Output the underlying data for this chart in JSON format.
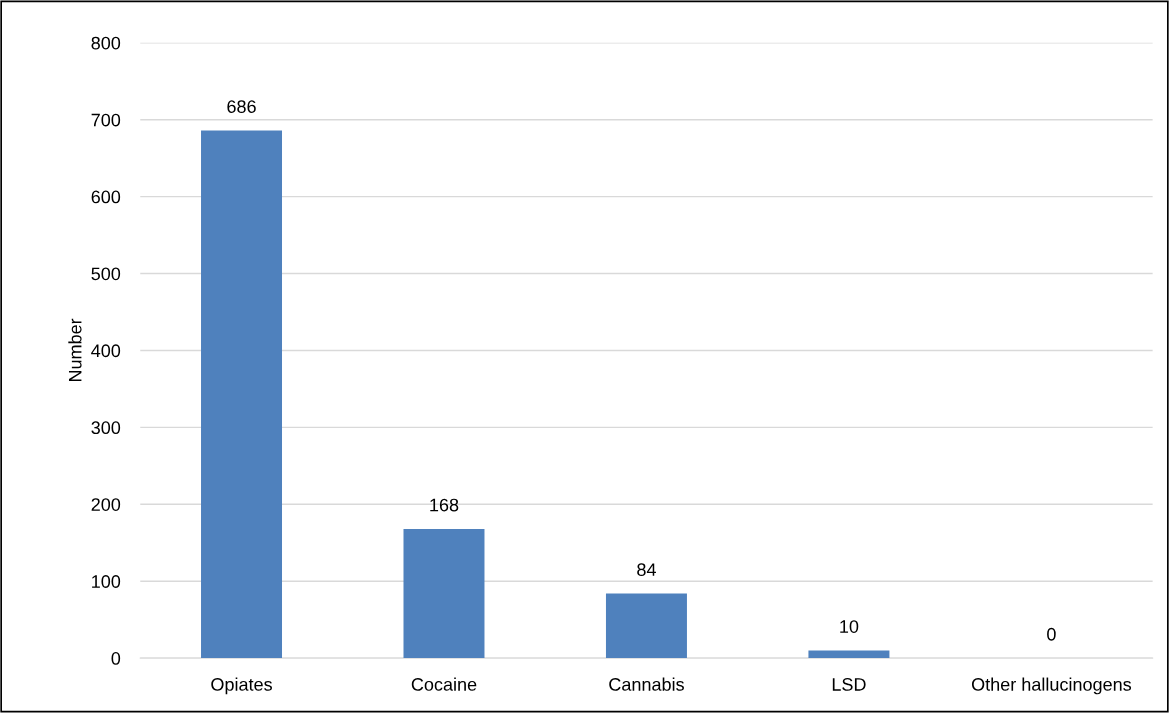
{
  "chart_data": {
    "type": "bar",
    "ylabel": "Number",
    "categories": [
      "Opiates",
      "Cocaine",
      "Cannabis",
      "LSD",
      "Other hallucinogens"
    ],
    "values": [
      686,
      168,
      84,
      10,
      0
    ],
    "color": "#4f81bd",
    "ylim": [
      0,
      800
    ],
    "yticks": [
      0,
      100,
      200,
      300,
      400,
      500,
      600,
      700,
      800
    ],
    "grid": "y",
    "data_labels": true
  }
}
